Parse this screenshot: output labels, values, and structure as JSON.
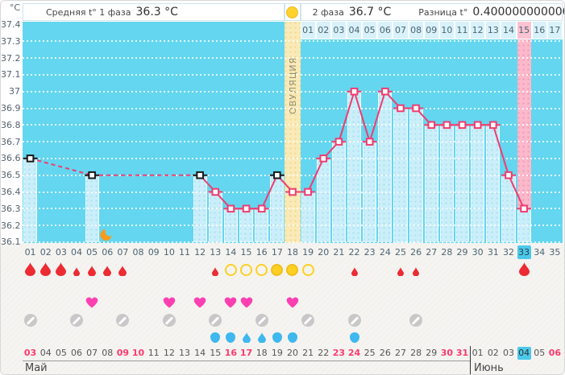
{
  "header": {
    "phase1_label": "Средняя t° 1 фаза",
    "phase1_value": "36.3 °C",
    "phase2_label": "2 фаза",
    "phase2_value": "36.7 °C",
    "diff_label": "Разница t°",
    "diff_value": "0.40000000000001 °C",
    "ovulation_label": "ОВУЛЯЦИЯ"
  },
  "axis": {
    "unit": "°C",
    "y_ticks": [
      "37.4",
      "37.3",
      "37.2",
      "37.1",
      "37",
      "36.9",
      "36.8",
      "36.7",
      "36.6",
      "36.5",
      "36.4",
      "36.3",
      "36.2",
      "36.1"
    ],
    "day_numbers": [
      "01",
      "02",
      "03",
      "04",
      "05",
      "06",
      "07",
      "08",
      "09",
      "10",
      "11",
      "12",
      "13",
      "14",
      "15",
      "16",
      "17",
      "18",
      "19",
      "20",
      "21",
      "22",
      "23",
      "24",
      "25",
      "26",
      "27",
      "28",
      "29",
      "30",
      "31",
      "32",
      "33",
      "34",
      "35"
    ],
    "highlighted_day": "33",
    "phase2_day_numbers": [
      "01",
      "02",
      "03",
      "04",
      "05",
      "06",
      "07",
      "08",
      "09",
      "10",
      "11",
      "12",
      "13",
      "14",
      "15",
      "16",
      "17"
    ],
    "phase2_highlighted": "15"
  },
  "chart_data": {
    "type": "line",
    "ylabel": "°C",
    "ylim": [
      36.1,
      37.4
    ],
    "x_range": [
      1,
      35
    ],
    "ovulation_day": 18,
    "selected_day": 33,
    "luteal_highlight_day": 33,
    "gaps_dashed": true,
    "points": [
      {
        "day": 1,
        "temp": 36.6,
        "flag": "black"
      },
      {
        "day": 5,
        "temp": 36.5,
        "flag": "black"
      },
      {
        "day": 12,
        "temp": 36.5,
        "flag": "black"
      },
      {
        "day": 13,
        "temp": 36.4
      },
      {
        "day": 14,
        "temp": 36.3
      },
      {
        "day": 15,
        "temp": 36.3
      },
      {
        "day": 16,
        "temp": 36.3
      },
      {
        "day": 17,
        "temp": 36.5,
        "flag": "black"
      },
      {
        "day": 18,
        "temp": 36.4
      },
      {
        "day": 19,
        "temp": 36.4
      },
      {
        "day": 20,
        "temp": 36.6
      },
      {
        "day": 21,
        "temp": 36.7
      },
      {
        "day": 22,
        "temp": 37.0
      },
      {
        "day": 23,
        "temp": 36.7
      },
      {
        "day": 24,
        "temp": 37.0
      },
      {
        "day": 25,
        "temp": 36.9
      },
      {
        "day": 26,
        "temp": 36.9
      },
      {
        "day": 27,
        "temp": 36.8
      },
      {
        "day": 28,
        "temp": 36.8
      },
      {
        "day": 29,
        "temp": 36.8
      },
      {
        "day": 30,
        "temp": 36.8
      },
      {
        "day": 31,
        "temp": 36.8
      },
      {
        "day": 32,
        "temp": 36.5
      },
      {
        "day": 33,
        "temp": 36.3
      }
    ]
  },
  "events": {
    "menstruation": [
      {
        "day": 1,
        "size": "large"
      },
      {
        "day": 2,
        "size": "large"
      },
      {
        "day": 3,
        "size": "large"
      },
      {
        "day": 4,
        "size": "small"
      },
      {
        "day": 5,
        "size": "medium"
      },
      {
        "day": 6,
        "size": "medium"
      },
      {
        "day": 7,
        "size": "medium"
      },
      {
        "day": 13,
        "size": "small"
      },
      {
        "day": 22,
        "size": "small"
      },
      {
        "day": 25,
        "size": "small"
      },
      {
        "day": 26,
        "size": "small"
      },
      {
        "day": 33,
        "size": "large"
      }
    ],
    "ovulation_tests": [
      {
        "day": 14,
        "result": "negative"
      },
      {
        "day": 15,
        "result": "negative"
      },
      {
        "day": 16,
        "result": "negative"
      },
      {
        "day": 17,
        "result": "positive"
      },
      {
        "day": 18,
        "result": "positive"
      },
      {
        "day": 19,
        "result": "negative"
      }
    ],
    "intercourse_days": [
      5,
      10,
      12,
      14,
      15,
      18
    ],
    "pill_days": [
      1,
      4,
      7,
      10,
      13,
      16,
      19,
      22,
      26
    ],
    "discharge": [
      {
        "day": 13,
        "shape": "round"
      },
      {
        "day": 14,
        "shape": "round"
      },
      {
        "day": 15,
        "shape": "drop"
      },
      {
        "day": 16,
        "shape": "drop"
      },
      {
        "day": 17,
        "shape": "round"
      },
      {
        "day": 18,
        "shape": "round"
      },
      {
        "day": 22,
        "shape": "round"
      }
    ],
    "moon_day": 6
  },
  "calendar": {
    "dates": [
      {
        "label": "03",
        "red": true
      },
      {
        "label": "04"
      },
      {
        "label": "05"
      },
      {
        "label": "06"
      },
      {
        "label": "07"
      },
      {
        "label": "08"
      },
      {
        "label": "09",
        "red": true
      },
      {
        "label": "10",
        "red": true
      },
      {
        "label": "11"
      },
      {
        "label": "12"
      },
      {
        "label": "13"
      },
      {
        "label": "14"
      },
      {
        "label": "15"
      },
      {
        "label": "16",
        "red": true
      },
      {
        "label": "17",
        "red": true
      },
      {
        "label": "18"
      },
      {
        "label": "19"
      },
      {
        "label": "20"
      },
      {
        "label": "21"
      },
      {
        "label": "22"
      },
      {
        "label": "23",
        "red": true
      },
      {
        "label": "24",
        "red": true
      },
      {
        "label": "25"
      },
      {
        "label": "26"
      },
      {
        "label": "27"
      },
      {
        "label": "28"
      },
      {
        "label": "29"
      },
      {
        "label": "30",
        "red": true
      },
      {
        "label": "31",
        "red": true
      },
      {
        "label": "01"
      },
      {
        "label": "02"
      },
      {
        "label": "03"
      },
      {
        "label": "04",
        "highlight": true
      },
      {
        "label": "05"
      },
      {
        "label": "06",
        "red": true
      }
    ],
    "months": [
      {
        "label": "Май",
        "start_day": 1
      },
      {
        "label": "Июнь",
        "start_day": 30
      }
    ]
  },
  "colors": {
    "chart_bg": "#64d6f0",
    "bar_fill": "#cbeffa",
    "ovulation_column": "#faeab8",
    "luteal_column": "#fbb9cc",
    "line": "#ee3d6f",
    "flag_marker": "#1a1a1a",
    "menstruation": "#ec2b33",
    "test_yellow": "#fdd023",
    "heart": "#fc40b1",
    "pill": "#c8c8c8",
    "discharge": "#3eb8ee",
    "moon": "#f59b1f",
    "date_red": "#fb3a6d",
    "day_highlight": "#4bc9ea"
  }
}
